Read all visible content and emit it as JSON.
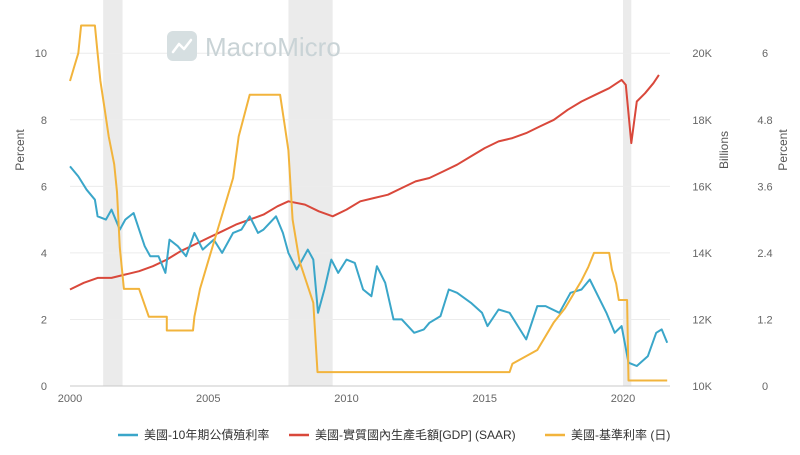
{
  "watermark": {
    "text": "MacroMicro"
  },
  "chart_data": {
    "type": "line",
    "x_ticks": [
      "2000",
      "2005",
      "2010",
      "2015",
      "2020"
    ],
    "x_range": [
      2000.0,
      2021.7
    ],
    "axes": {
      "left": {
        "title": "Percent",
        "ticks": [
          0,
          2,
          4,
          6,
          8,
          10
        ],
        "tick_labels": [
          "0",
          "2",
          "4",
          "6",
          "8",
          "10"
        ],
        "range": [
          0,
          11.6
        ]
      },
      "right1": {
        "title": "Billions",
        "ticks": [
          10000,
          12000,
          14000,
          16000,
          18000,
          20000
        ],
        "tick_labels": [
          "10K",
          "12K",
          "14K",
          "16K",
          "18K",
          "20K"
        ],
        "range": [
          10000,
          21600
        ]
      },
      "right2": {
        "title": "Percent",
        "ticks": [
          0,
          1.2,
          2.4,
          3.6,
          4.8,
          6
        ],
        "tick_labels": [
          "0",
          "1.2",
          "2.4",
          "3.6",
          "4.8",
          "6"
        ],
        "range": [
          0,
          6.96
        ]
      }
    },
    "recessions": [
      [
        2001.2,
        2001.9
      ],
      [
        2007.9,
        2009.5
      ],
      [
        2020.0,
        2020.3
      ]
    ],
    "grid": true,
    "legend_position": "bottom",
    "series": [
      {
        "name": "美國-10年期公債殖利率",
        "color": "#3aa6c9",
        "axis": "left",
        "points": [
          [
            2000.0,
            6.6
          ],
          [
            2000.3,
            6.3
          ],
          [
            2000.6,
            5.9
          ],
          [
            2000.9,
            5.6
          ],
          [
            2001.0,
            5.1
          ],
          [
            2001.3,
            5.0
          ],
          [
            2001.5,
            5.3
          ],
          [
            2001.8,
            4.7
          ],
          [
            2002.0,
            5.0
          ],
          [
            2002.3,
            5.2
          ],
          [
            2002.5,
            4.7
          ],
          [
            2002.7,
            4.2
          ],
          [
            2002.9,
            3.9
          ],
          [
            2003.2,
            3.9
          ],
          [
            2003.45,
            3.4
          ],
          [
            2003.6,
            4.4
          ],
          [
            2003.9,
            4.2
          ],
          [
            2004.2,
            3.9
          ],
          [
            2004.5,
            4.6
          ],
          [
            2004.8,
            4.1
          ],
          [
            2005.2,
            4.4
          ],
          [
            2005.5,
            4.0
          ],
          [
            2005.9,
            4.6
          ],
          [
            2006.2,
            4.7
          ],
          [
            2006.5,
            5.1
          ],
          [
            2006.8,
            4.6
          ],
          [
            2007.0,
            4.7
          ],
          [
            2007.45,
            5.1
          ],
          [
            2007.7,
            4.6
          ],
          [
            2007.9,
            4.0
          ],
          [
            2008.2,
            3.5
          ],
          [
            2008.4,
            3.8
          ],
          [
            2008.6,
            4.1
          ],
          [
            2008.8,
            3.8
          ],
          [
            2008.97,
            2.2
          ],
          [
            2009.2,
            2.9
          ],
          [
            2009.45,
            3.8
          ],
          [
            2009.7,
            3.4
          ],
          [
            2010.0,
            3.8
          ],
          [
            2010.3,
            3.7
          ],
          [
            2010.6,
            2.9
          ],
          [
            2010.9,
            2.7
          ],
          [
            2011.1,
            3.6
          ],
          [
            2011.4,
            3.1
          ],
          [
            2011.7,
            2.0
          ],
          [
            2012.0,
            2.0
          ],
          [
            2012.45,
            1.6
          ],
          [
            2012.8,
            1.7
          ],
          [
            2013.0,
            1.9
          ],
          [
            2013.4,
            2.1
          ],
          [
            2013.7,
            2.9
          ],
          [
            2014.0,
            2.8
          ],
          [
            2014.5,
            2.5
          ],
          [
            2014.9,
            2.2
          ],
          [
            2015.1,
            1.8
          ],
          [
            2015.5,
            2.3
          ],
          [
            2015.9,
            2.2
          ],
          [
            2016.2,
            1.8
          ],
          [
            2016.5,
            1.4
          ],
          [
            2016.9,
            2.4
          ],
          [
            2017.2,
            2.4
          ],
          [
            2017.7,
            2.2
          ],
          [
            2018.1,
            2.8
          ],
          [
            2018.5,
            2.9
          ],
          [
            2018.8,
            3.2
          ],
          [
            2019.1,
            2.7
          ],
          [
            2019.4,
            2.2
          ],
          [
            2019.7,
            1.6
          ],
          [
            2019.95,
            1.8
          ],
          [
            2020.2,
            0.7
          ],
          [
            2020.5,
            0.6
          ],
          [
            2020.9,
            0.9
          ],
          [
            2021.2,
            1.6
          ],
          [
            2021.4,
            1.7
          ],
          [
            2021.6,
            1.3
          ]
        ]
      },
      {
        "name": "美國-實質國內生產毛額[GDP] (SAAR)",
        "color": "#d9483b",
        "axis": "right1",
        "points": [
          [
            2000.0,
            12900
          ],
          [
            2000.5,
            13100
          ],
          [
            2001.0,
            13250
          ],
          [
            2001.5,
            13250
          ],
          [
            2002.0,
            13350
          ],
          [
            2002.5,
            13450
          ],
          [
            2003.0,
            13600
          ],
          [
            2003.5,
            13800
          ],
          [
            2004.0,
            14050
          ],
          [
            2004.5,
            14250
          ],
          [
            2005.0,
            14450
          ],
          [
            2005.5,
            14650
          ],
          [
            2006.0,
            14850
          ],
          [
            2006.5,
            15000
          ],
          [
            2007.0,
            15150
          ],
          [
            2007.5,
            15400
          ],
          [
            2007.9,
            15550
          ],
          [
            2008.5,
            15450
          ],
          [
            2009.0,
            15250
          ],
          [
            2009.5,
            15100
          ],
          [
            2010.0,
            15300
          ],
          [
            2010.5,
            15550
          ],
          [
            2011.0,
            15650
          ],
          [
            2011.5,
            15750
          ],
          [
            2012.0,
            15950
          ],
          [
            2012.5,
            16150
          ],
          [
            2013.0,
            16250
          ],
          [
            2013.5,
            16450
          ],
          [
            2014.0,
            16650
          ],
          [
            2014.5,
            16900
          ],
          [
            2015.0,
            17150
          ],
          [
            2015.5,
            17350
          ],
          [
            2016.0,
            17450
          ],
          [
            2016.5,
            17600
          ],
          [
            2017.0,
            17800
          ],
          [
            2017.5,
            18000
          ],
          [
            2018.0,
            18300
          ],
          [
            2018.5,
            18550
          ],
          [
            2019.0,
            18750
          ],
          [
            2019.5,
            18950
          ],
          [
            2019.95,
            19200
          ],
          [
            2020.1,
            19050
          ],
          [
            2020.3,
            17300
          ],
          [
            2020.5,
            18550
          ],
          [
            2020.8,
            18800
          ],
          [
            2021.1,
            19100
          ],
          [
            2021.3,
            19350
          ]
        ]
      },
      {
        "name": "美國-基準利率 (日)",
        "color": "#f2b43c",
        "axis": "right2",
        "points": [
          [
            2000.0,
            5.5
          ],
          [
            2000.15,
            5.75
          ],
          [
            2000.3,
            6.0
          ],
          [
            2000.4,
            6.5
          ],
          [
            2000.9,
            6.5
          ],
          [
            2001.0,
            6.0
          ],
          [
            2001.1,
            5.5
          ],
          [
            2001.25,
            5.0
          ],
          [
            2001.4,
            4.5
          ],
          [
            2001.6,
            4.0
          ],
          [
            2001.7,
            3.5
          ],
          [
            2001.8,
            2.5
          ],
          [
            2001.95,
            1.75
          ],
          [
            2002.5,
            1.75
          ],
          [
            2002.85,
            1.25
          ],
          [
            2003.5,
            1.25
          ],
          [
            2003.5,
            1.0
          ],
          [
            2004.45,
            1.0
          ],
          [
            2004.5,
            1.25
          ],
          [
            2004.7,
            1.75
          ],
          [
            2005.0,
            2.25
          ],
          [
            2005.3,
            2.75
          ],
          [
            2005.6,
            3.25
          ],
          [
            2005.9,
            3.75
          ],
          [
            2006.1,
            4.5
          ],
          [
            2006.5,
            5.25
          ],
          [
            2007.6,
            5.25
          ],
          [
            2007.75,
            4.75
          ],
          [
            2007.9,
            4.25
          ],
          [
            2008.05,
            3.0
          ],
          [
            2008.3,
            2.25
          ],
          [
            2008.8,
            1.5
          ],
          [
            2008.95,
            0.25
          ],
          [
            2015.9,
            0.25
          ],
          [
            2016.0,
            0.4
          ],
          [
            2016.9,
            0.65
          ],
          [
            2017.2,
            0.9
          ],
          [
            2017.5,
            1.15
          ],
          [
            2017.9,
            1.4
          ],
          [
            2018.2,
            1.65
          ],
          [
            2018.5,
            1.9
          ],
          [
            2018.75,
            2.15
          ],
          [
            2018.95,
            2.4
          ],
          [
            2019.5,
            2.4
          ],
          [
            2019.6,
            2.1
          ],
          [
            2019.75,
            1.85
          ],
          [
            2019.85,
            1.55
          ],
          [
            2020.15,
            1.55
          ],
          [
            2020.2,
            0.1
          ],
          [
            2021.6,
            0.1
          ]
        ]
      }
    ]
  }
}
